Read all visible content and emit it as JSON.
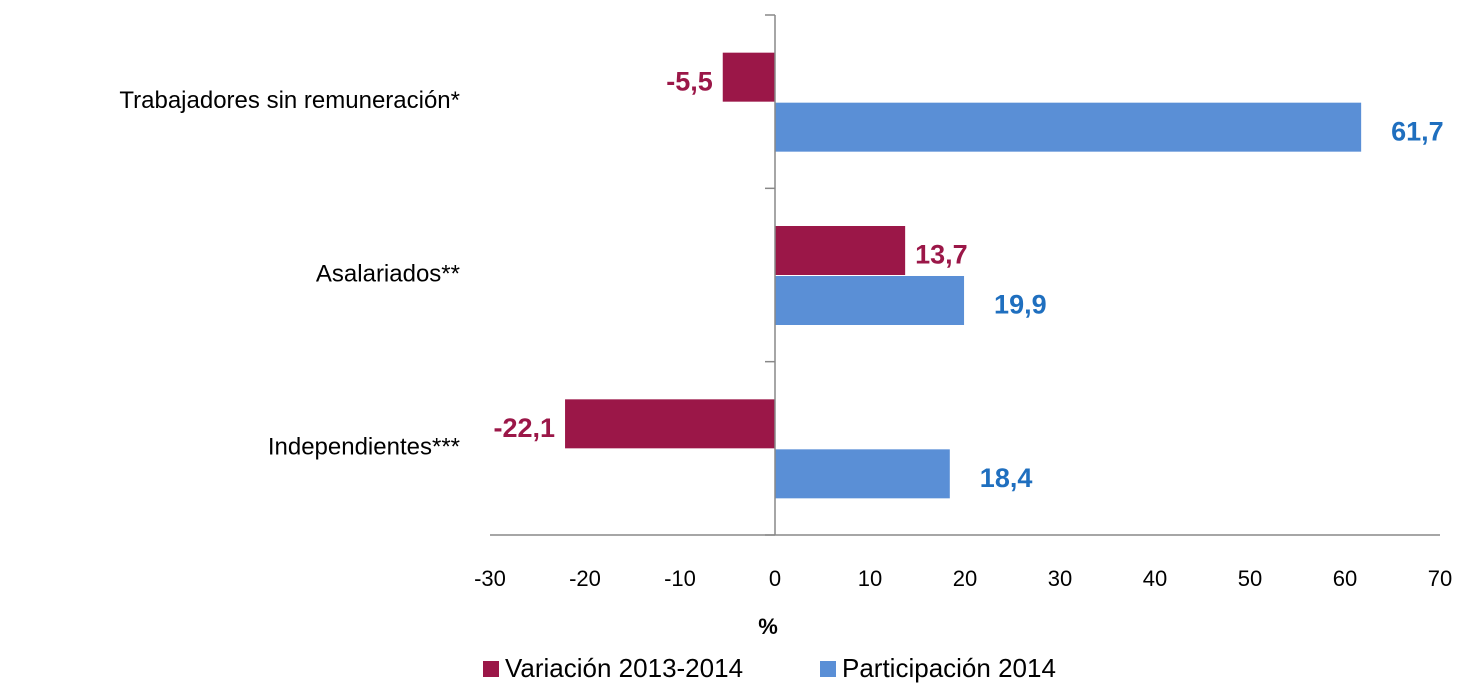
{
  "chart_data": {
    "type": "barh",
    "categories": [
      "Trabajadores sin remuneración*",
      "Asalariados**",
      "Independientes***"
    ],
    "series": [
      {
        "name": "Variación 2013-2014",
        "color": "#9b1748",
        "values": [
          -5.5,
          13.7,
          -22.1
        ],
        "value_labels": [
          "-5,5",
          "13,7",
          "-22,1"
        ]
      },
      {
        "name": "Participación 2014",
        "color": "#5a8fd6",
        "values": [
          61.7,
          19.9,
          18.4
        ],
        "value_labels": [
          "61,7",
          "19,9",
          "18,4"
        ]
      }
    ],
    "xlabel": "%",
    "xlim": [
      -30,
      70
    ],
    "xticks": [
      -30,
      -20,
      -10,
      0,
      10,
      20,
      30,
      40,
      50,
      60,
      70
    ],
    "legend": "bottom"
  }
}
